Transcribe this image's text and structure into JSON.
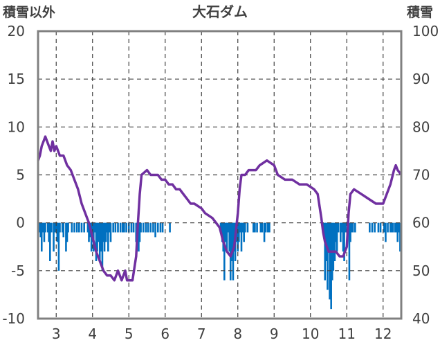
{
  "chart_data": {
    "type": "bar+line",
    "title": "大石ダム",
    "left_axis_title": "積雪以外",
    "right_axis_title": "積雪",
    "left_ylim": [
      -10,
      20
    ],
    "left_ticks": [
      "20",
      "15",
      "10",
      "5",
      "0",
      "-5",
      "-10"
    ],
    "right_ylim": [
      40,
      100
    ],
    "right_ticks": [
      "100",
      "90",
      "80",
      "70",
      "60",
      "50",
      "40"
    ],
    "x_domain": [
      2.5,
      12.5
    ],
    "x_ticks": [
      {
        "label": "3",
        "x": 3
      },
      {
        "label": "4",
        "x": 4
      },
      {
        "label": "5",
        "x": 5
      },
      {
        "label": "6",
        "x": 6
      },
      {
        "label": "7",
        "x": 7
      },
      {
        "label": "8",
        "x": 8
      },
      {
        "label": "9",
        "x": 9
      },
      {
        "label": "10",
        "x": 10
      },
      {
        "label": "11",
        "x": 11
      },
      {
        "label": "12",
        "x": 12
      }
    ],
    "grid": "dashed",
    "colors": {
      "bars": "#0070c0",
      "line": "#7030a0",
      "frame": "#808080",
      "grid": "#404040",
      "text": "#404040"
    },
    "bars": [
      [
        2.53,
        -1
      ],
      [
        2.57,
        -1.5
      ],
      [
        2.6,
        -3
      ],
      [
        2.63,
        -1
      ],
      [
        2.67,
        -2
      ],
      [
        2.7,
        -1
      ],
      [
        2.77,
        -1
      ],
      [
        2.8,
        -2
      ],
      [
        2.83,
        -4
      ],
      [
        2.87,
        -1
      ],
      [
        2.93,
        -3
      ],
      [
        2.97,
        -1
      ],
      [
        3.0,
        -1
      ],
      [
        3.03,
        -2
      ],
      [
        3.07,
        -5
      ],
      [
        3.1,
        -1
      ],
      [
        3.17,
        -1
      ],
      [
        3.2,
        -1.5
      ],
      [
        3.27,
        -3
      ],
      [
        3.3,
        -2
      ],
      [
        3.33,
        -1
      ],
      [
        3.43,
        -1
      ],
      [
        3.5,
        -1
      ],
      [
        3.57,
        -1
      ],
      [
        3.63,
        -1
      ],
      [
        3.7,
        -1
      ],
      [
        3.77,
        -1
      ],
      [
        3.87,
        -1
      ],
      [
        3.9,
        -2
      ],
      [
        3.93,
        -1.5
      ],
      [
        3.97,
        -3
      ],
      [
        4.0,
        -2
      ],
      [
        4.03,
        -3
      ],
      [
        4.07,
        -1
      ],
      [
        4.1,
        -4
      ],
      [
        4.13,
        -3
      ],
      [
        4.17,
        -2
      ],
      [
        4.2,
        -4
      ],
      [
        4.23,
        -3
      ],
      [
        4.27,
        -5
      ],
      [
        4.3,
        -2
      ],
      [
        4.33,
        -3
      ],
      [
        4.37,
        -2
      ],
      [
        4.4,
        -1
      ],
      [
        4.43,
        -3
      ],
      [
        4.47,
        -1
      ],
      [
        4.5,
        -2
      ],
      [
        4.57,
        -1
      ],
      [
        4.63,
        -1
      ],
      [
        4.7,
        -1
      ],
      [
        4.77,
        -1
      ],
      [
        4.83,
        -1
      ],
      [
        4.87,
        -1
      ],
      [
        4.93,
        -1
      ],
      [
        5.0,
        -1
      ],
      [
        5.07,
        -1
      ],
      [
        5.13,
        -1
      ],
      [
        5.2,
        -2
      ],
      [
        5.23,
        -1
      ],
      [
        5.27,
        -3
      ],
      [
        5.3,
        -2
      ],
      [
        5.33,
        -1
      ],
      [
        5.4,
        -1
      ],
      [
        5.47,
        -1
      ],
      [
        5.53,
        -1
      ],
      [
        5.6,
        -1
      ],
      [
        5.67,
        -1
      ],
      [
        5.73,
        -1.5
      ],
      [
        5.8,
        -1
      ],
      [
        5.87,
        -1
      ],
      [
        5.93,
        -1
      ],
      [
        6.13,
        -1
      ],
      [
        7.53,
        -1
      ],
      [
        7.57,
        -2
      ],
      [
        7.6,
        -3
      ],
      [
        7.63,
        -6
      ],
      [
        7.67,
        -2
      ],
      [
        7.7,
        -3
      ],
      [
        7.73,
        -1
      ],
      [
        7.77,
        -3
      ],
      [
        7.8,
        -6
      ],
      [
        7.83,
        -4
      ],
      [
        7.87,
        -6
      ],
      [
        7.9,
        -3
      ],
      [
        7.93,
        -4
      ],
      [
        7.97,
        -2
      ],
      [
        8.0,
        -3
      ],
      [
        8.03,
        -2
      ],
      [
        8.07,
        -1
      ],
      [
        8.1,
        -3
      ],
      [
        8.13,
        -1
      ],
      [
        8.17,
        -2
      ],
      [
        8.2,
        -1
      ],
      [
        8.27,
        -1
      ],
      [
        8.43,
        -1
      ],
      [
        8.47,
        -1
      ],
      [
        8.53,
        -1
      ],
      [
        8.63,
        -1
      ],
      [
        8.67,
        -1
      ],
      [
        8.73,
        -2
      ],
      [
        8.77,
        -1
      ],
      [
        8.83,
        -1
      ],
      [
        8.87,
        -1
      ],
      [
        10.37,
        -1
      ],
      [
        10.4,
        -6
      ],
      [
        10.43,
        -4
      ],
      [
        10.47,
        -7
      ],
      [
        10.5,
        -3
      ],
      [
        10.53,
        -8
      ],
      [
        10.57,
        -9
      ],
      [
        10.6,
        -6
      ],
      [
        10.63,
        -5
      ],
      [
        10.67,
        -4
      ],
      [
        10.7,
        -2
      ],
      [
        10.73,
        -3
      ],
      [
        10.77,
        -1
      ],
      [
        10.83,
        -2
      ],
      [
        10.87,
        -1
      ],
      [
        10.9,
        -3
      ],
      [
        10.93,
        -4
      ],
      [
        10.97,
        -1
      ],
      [
        11.03,
        -1
      ],
      [
        11.07,
        -6
      ],
      [
        11.1,
        -2
      ],
      [
        11.13,
        -1
      ],
      [
        11.17,
        -1
      ],
      [
        11.23,
        -1
      ],
      [
        11.63,
        -1
      ],
      [
        11.7,
        -1
      ],
      [
        11.77,
        -1
      ],
      [
        11.87,
        -1
      ],
      [
        11.93,
        -1
      ],
      [
        12.03,
        -1
      ],
      [
        12.07,
        -2
      ],
      [
        12.13,
        -1
      ],
      [
        12.2,
        -1
      ],
      [
        12.23,
        -1
      ],
      [
        12.27,
        -1
      ],
      [
        12.33,
        -1
      ],
      [
        12.37,
        -1
      ],
      [
        12.4,
        -2
      ],
      [
        12.43,
        -1
      ],
      [
        12.47,
        -3
      ]
    ],
    "line": [
      [
        2.5,
        73
      ],
      [
        2.55,
        74
      ],
      [
        2.6,
        76
      ],
      [
        2.65,
        77
      ],
      [
        2.7,
        78
      ],
      [
        2.75,
        77
      ],
      [
        2.8,
        76
      ],
      [
        2.85,
        75
      ],
      [
        2.9,
        77
      ],
      [
        2.95,
        75
      ],
      [
        3.0,
        76
      ],
      [
        3.05,
        75
      ],
      [
        3.1,
        74
      ],
      [
        3.2,
        74
      ],
      [
        3.3,
        72
      ],
      [
        3.4,
        71
      ],
      [
        3.5,
        69
      ],
      [
        3.6,
        67
      ],
      [
        3.7,
        64
      ],
      [
        3.8,
        62
      ],
      [
        3.9,
        60
      ],
      [
        4.0,
        57
      ],
      [
        4.1,
        54
      ],
      [
        4.2,
        52
      ],
      [
        4.3,
        50
      ],
      [
        4.4,
        49
      ],
      [
        4.5,
        49
      ],
      [
        4.6,
        48
      ],
      [
        4.7,
        50
      ],
      [
        4.8,
        48
      ],
      [
        4.9,
        50
      ],
      [
        4.95,
        48
      ],
      [
        5.0,
        48
      ],
      [
        5.1,
        48
      ],
      [
        5.2,
        53
      ],
      [
        5.25,
        60
      ],
      [
        5.3,
        66
      ],
      [
        5.35,
        70
      ],
      [
        5.5,
        71
      ],
      [
        5.6,
        70
      ],
      [
        5.7,
        70
      ],
      [
        5.8,
        70
      ],
      [
        5.9,
        69
      ],
      [
        6.0,
        69
      ],
      [
        6.1,
        68
      ],
      [
        6.2,
        68
      ],
      [
        6.3,
        67
      ],
      [
        6.4,
        67
      ],
      [
        6.5,
        66
      ],
      [
        6.6,
        65
      ],
      [
        6.7,
        64
      ],
      [
        6.8,
        64
      ],
      [
        7.0,
        63
      ],
      [
        7.1,
        62
      ],
      [
        7.3,
        61
      ],
      [
        7.4,
        60
      ],
      [
        7.5,
        59
      ],
      [
        7.6,
        56
      ],
      [
        7.7,
        54
      ],
      [
        7.8,
        53
      ],
      [
        7.9,
        55
      ],
      [
        8.0,
        62
      ],
      [
        8.05,
        67
      ],
      [
        8.1,
        70
      ],
      [
        8.2,
        70
      ],
      [
        8.3,
        71
      ],
      [
        8.5,
        71
      ],
      [
        8.6,
        72
      ],
      [
        8.8,
        73
      ],
      [
        9.0,
        72
      ],
      [
        9.1,
        70
      ],
      [
        9.3,
        69
      ],
      [
        9.5,
        69
      ],
      [
        9.7,
        68
      ],
      [
        9.9,
        68
      ],
      [
        10.1,
        67
      ],
      [
        10.2,
        66
      ],
      [
        10.3,
        61
      ],
      [
        10.35,
        58
      ],
      [
        10.4,
        56
      ],
      [
        10.5,
        54
      ],
      [
        10.6,
        54
      ],
      [
        10.7,
        54
      ],
      [
        10.8,
        53
      ],
      [
        10.9,
        53
      ],
      [
        11.0,
        55
      ],
      [
        11.05,
        62
      ],
      [
        11.1,
        66
      ],
      [
        11.2,
        67
      ],
      [
        11.4,
        66
      ],
      [
        11.6,
        65
      ],
      [
        11.8,
        64
      ],
      [
        12.0,
        64
      ],
      [
        12.1,
        66
      ],
      [
        12.2,
        68
      ],
      [
        12.3,
        71
      ],
      [
        12.35,
        72
      ],
      [
        12.4,
        71
      ],
      [
        12.5,
        70
      ]
    ]
  }
}
